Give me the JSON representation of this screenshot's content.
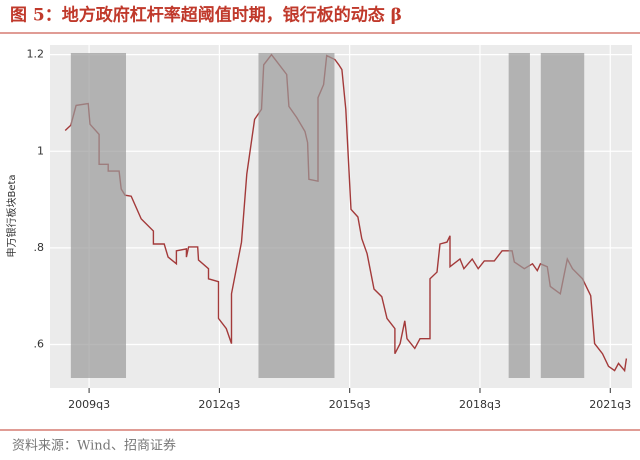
{
  "chart_data": {
    "type": "line",
    "title": "图 5：地方政府杠杆率超阈值时期，银行板的动态 β",
    "y_label": "申万银行板块Beta",
    "source": "资料来源：Wind、招商证券",
    "xlim": [
      2008.6,
      2022.0
    ],
    "ylim": [
      0.51,
      1.22
    ],
    "xticks": [
      {
        "value": 2009.5,
        "label": "2009q3"
      },
      {
        "value": 2012.5,
        "label": "2012q3"
      },
      {
        "value": 2015.5,
        "label": "2015q3"
      },
      {
        "value": 2018.5,
        "label": "2018q3"
      },
      {
        "value": 2021.5,
        "label": "2021q3"
      }
    ],
    "yticks": [
      {
        "value": 0.6,
        "label": ".6"
      },
      {
        "value": 0.8,
        "label": ".8"
      },
      1,
      1.2
    ],
    "grid": true,
    "shaded_periods": [
      {
        "start": 2009.08,
        "end": 2010.35
      },
      {
        "start": 2013.4,
        "end": 2015.15
      },
      {
        "start": 2019.16,
        "end": 2019.65
      },
      {
        "start": 2019.9,
        "end": 2020.9
      }
    ],
    "shade_color": "#9a9a9a",
    "series": [
      {
        "name": "Beta",
        "color": "#a33a3a",
        "x": [
          2008.95,
          2009.08,
          2009.2,
          2009.48,
          2009.52,
          2009.73,
          2009.73,
          2009.94,
          2009.94,
          2010.19,
          2010.24,
          2010.33,
          2010.47,
          2010.7,
          2010.98,
          2010.98,
          2011.23,
          2011.32,
          2011.51,
          2011.51,
          2011.74,
          2011.74,
          2011.79,
          2012.0,
          2012.02,
          2012.25,
          2012.25,
          2012.48,
          2012.48,
          2012.66,
          2012.78,
          2012.78,
          2013.01,
          2013.13,
          2013.31,
          2013.47,
          2013.52,
          2013.7,
          2013.82,
          2014.05,
          2014.1,
          2014.28,
          2014.47,
          2014.53,
          2014.56,
          2014.77,
          2014.77,
          2014.9,
          2014.97,
          2015.16,
          2015.25,
          2015.32,
          2015.41,
          2015.53,
          2015.69,
          2015.78,
          2015.9,
          2016.06,
          2016.24,
          2016.36,
          2016.54,
          2016.54,
          2016.66,
          2016.77,
          2016.82,
          2017.0,
          2017.12,
          2017.35,
          2017.35,
          2017.51,
          2017.58,
          2017.74,
          2017.81,
          2017.81,
          2018.04,
          2018.13,
          2018.32,
          2018.46,
          2018.6,
          2018.83,
          2019.01,
          2019.24,
          2019.29,
          2019.52,
          2019.71,
          2019.82,
          2019.89,
          2020.05,
          2020.12,
          2020.35,
          2020.51,
          2020.63,
          2020.86,
          2021.05,
          2021.14,
          2021.32,
          2021.46,
          2021.6,
          2021.69,
          2021.83,
          2021.87
        ],
        "values": [
          1.043,
          1.054,
          1.095,
          1.099,
          1.056,
          1.035,
          0.973,
          0.973,
          0.959,
          0.959,
          0.922,
          0.909,
          0.907,
          0.86,
          0.835,
          0.808,
          0.808,
          0.781,
          0.767,
          0.794,
          0.798,
          0.781,
          0.802,
          0.802,
          0.775,
          0.757,
          0.736,
          0.73,
          0.654,
          0.633,
          0.602,
          0.705,
          0.812,
          0.953,
          1.066,
          1.087,
          1.179,
          1.2,
          1.186,
          1.159,
          1.093,
          1.07,
          1.041,
          1.018,
          0.942,
          0.938,
          1.111,
          1.138,
          1.198,
          1.19,
          1.179,
          1.169,
          1.087,
          0.88,
          0.864,
          0.819,
          0.788,
          0.715,
          0.699,
          0.654,
          0.633,
          0.581,
          0.602,
          0.649,
          0.612,
          0.592,
          0.612,
          0.612,
          0.736,
          0.75,
          0.808,
          0.812,
          0.825,
          0.761,
          0.777,
          0.757,
          0.777,
          0.757,
          0.773,
          0.773,
          0.794,
          0.794,
          0.771,
          0.757,
          0.767,
          0.753,
          0.767,
          0.761,
          0.72,
          0.705,
          0.777,
          0.757,
          0.736,
          0.701,
          0.602,
          0.581,
          0.555,
          0.546,
          0.561,
          0.546,
          0.571
        ]
      }
    ]
  }
}
